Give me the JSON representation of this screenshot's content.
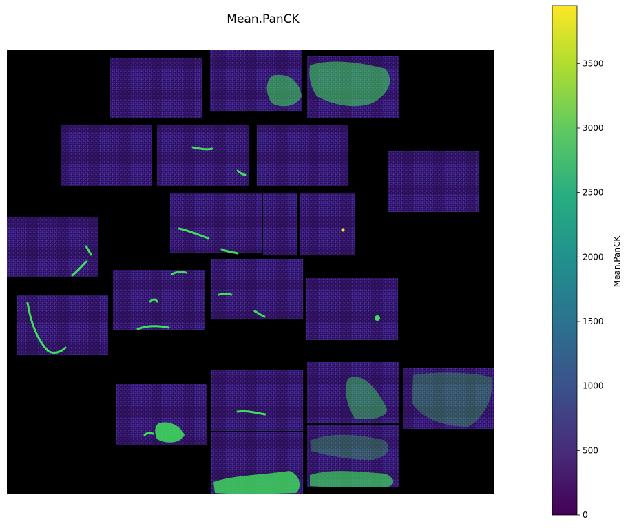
{
  "chart_data": {
    "type": "heatmap",
    "title": "Mean.PanCK",
    "colorbar": {
      "label": "Mean.PanCK",
      "range": [
        0,
        3950
      ],
      "ticks": [
        0,
        500,
        1000,
        1500,
        2000,
        2500,
        3000,
        3500
      ],
      "tick_labels": [
        "0",
        "500",
        "1000",
        "1500",
        "2000",
        "2500",
        "3000",
        "3500"
      ],
      "colormap": "viridis",
      "colormap_stops": [
        "#440154",
        "#472c7a",
        "#3b518b",
        "#2c718e",
        "#21908d",
        "#27ad81",
        "#5cc863",
        "#aadc32",
        "#fde725"
      ]
    },
    "background_color": "#000000",
    "cell_color_typical": "#3b1f7a",
    "high_expression_color": "#3ee05a"
  }
}
